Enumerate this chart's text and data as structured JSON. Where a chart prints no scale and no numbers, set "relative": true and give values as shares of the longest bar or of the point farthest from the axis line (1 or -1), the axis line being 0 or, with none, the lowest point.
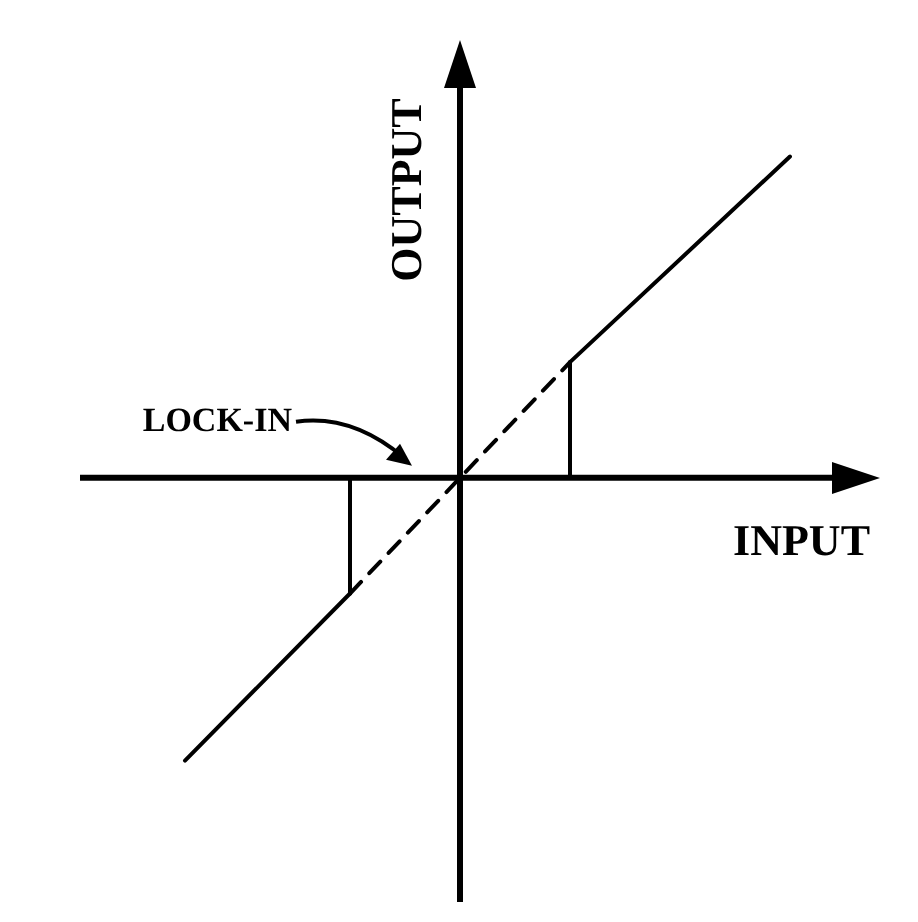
{
  "chart_data": {
    "type": "line",
    "relative": true,
    "xlabel": "INPUT",
    "ylabel": "OUTPUT",
    "categories": [
      null,
      null,
      null,
      null,
      null,
      null,
      null,
      null,
      null,
      null,
      null,
      null,
      null
    ],
    "series": [
      {
        "color": "#000000",
        "values": [
          null,
          -0.88,
          null,
          null,
          -0.36,
          null,
          null,
          null,
          null,
          null,
          null,
          null,
          null
        ]
      },
      {
        "type": "step",
        "color": "#000000",
        "values": [
          null,
          null,
          null,
          null,
          -0.36,
          0,
          null,
          null,
          null,
          null,
          null,
          null,
          null
        ]
      },
      {
        "color": "#000000",
        "values": [
          null,
          null,
          null,
          null,
          -0.36,
          null,
          null,
          null,
          0.36,
          null,
          null,
          null,
          null
        ],
        "line_style": "dashed"
      },
      {
        "type": "step",
        "color": "#000000",
        "values": [
          null,
          null,
          null,
          null,
          null,
          null,
          null,
          0,
          0.36,
          null,
          null,
          null,
          null
        ]
      },
      {
        "color": "#000000",
        "values": [
          null,
          null,
          null,
          null,
          null,
          null,
          null,
          null,
          0.36,
          null,
          null,
          null,
          1
        ]
      }
    ],
    "annotations": [
      "LOCK-IN"
    ],
    "marker": "none",
    "grid": false,
    "legend": false
  }
}
